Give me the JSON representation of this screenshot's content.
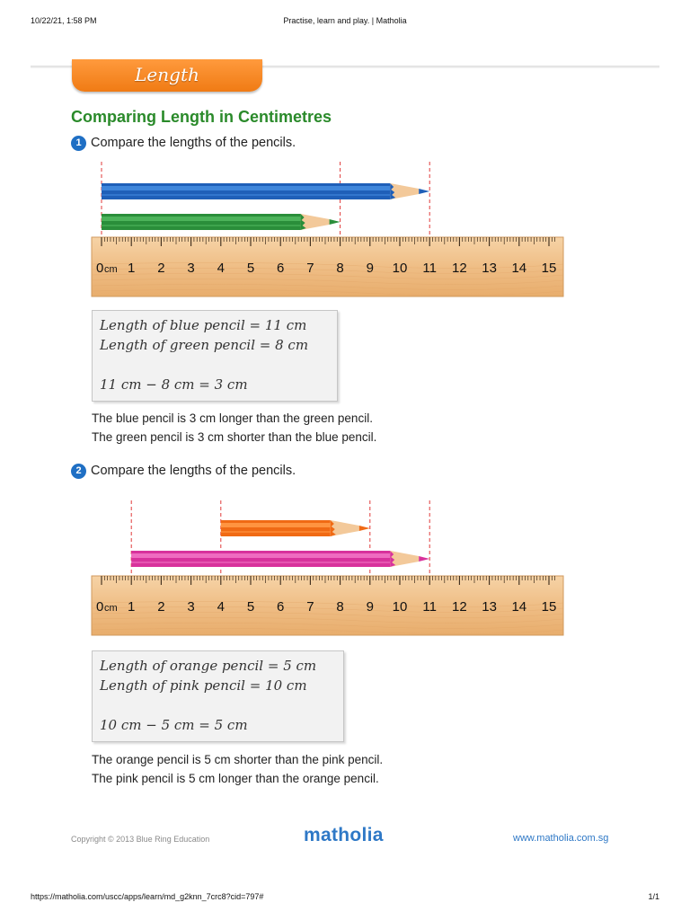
{
  "print_header": {
    "datetime": "10/22/21, 1:58 PM",
    "page_title": "Practise, learn and play. | Matholia"
  },
  "banner": {
    "label": "Length"
  },
  "title": "Comparing Length in Centimetres",
  "ruler_unit": "cm",
  "ruler_ticks": [
    "0",
    "1",
    "2",
    "3",
    "4",
    "5",
    "6",
    "7",
    "8",
    "9",
    "10",
    "11",
    "12",
    "13",
    "14",
    "15"
  ],
  "questions": [
    {
      "number": "1",
      "prompt": "Compare the lengths of the pencils.",
      "pencils": [
        {
          "color_name": "blue",
          "start_cm": 0,
          "end_cm": 11,
          "body": "#1f5fb8",
          "stripe": "#3f86db",
          "lead": "#1f5fb8"
        },
        {
          "color_name": "green",
          "start_cm": 0,
          "end_cm": 8,
          "body": "#2a8e3a",
          "stripe": "#4cb35a",
          "lead": "#2a8e3a"
        }
      ],
      "guide_marks_cm": [
        0,
        8,
        11
      ],
      "work_lines": [
        "Length of blue pencil = 11 cm",
        "Length of green pencil = 8 cm",
        "11 cm − 8 cm = 3 cm"
      ],
      "sentences": [
        "The blue pencil is 3 cm longer than the green pencil.",
        "The green pencil is 3 cm shorter than the blue pencil."
      ]
    },
    {
      "number": "2",
      "prompt": "Compare the lengths of the pencils.",
      "pencils": [
        {
          "color_name": "orange",
          "start_cm": 4,
          "end_cm": 9,
          "body": "#f06a14",
          "stripe": "#ff9440",
          "lead": "#f06a14"
        },
        {
          "color_name": "pink",
          "start_cm": 1,
          "end_cm": 11,
          "body": "#d8329c",
          "stripe": "#ef6cc0",
          "lead": "#d8329c"
        }
      ],
      "guide_marks_cm": [
        1,
        4,
        9,
        11
      ],
      "work_lines": [
        "Length of orange pencil = 5 cm",
        "Length of pink pencil = 10 cm",
        "10 cm − 5 cm = 5 cm"
      ],
      "sentences": [
        "The orange pencil is 5 cm shorter than the pink pencil.",
        "The pink pencil is 5 cm longer than the orange pencil."
      ]
    }
  ],
  "footer": {
    "copyright": "Copyright © 2013 Blue Ring Education",
    "brand": "matholia",
    "website": "www.matholia.com.sg"
  },
  "print_footer": {
    "url": "https://matholia.com/uscc/apps/learn/md_g2knn_7crc8?cid=797#",
    "page": "1/1"
  },
  "colors": {
    "accent_orange": "#f07b14",
    "title_green": "#2a8a2a",
    "brand_blue": "#2e78c6",
    "ruler_wood": "#f2c08a",
    "guide_red": "#e03a3a"
  }
}
